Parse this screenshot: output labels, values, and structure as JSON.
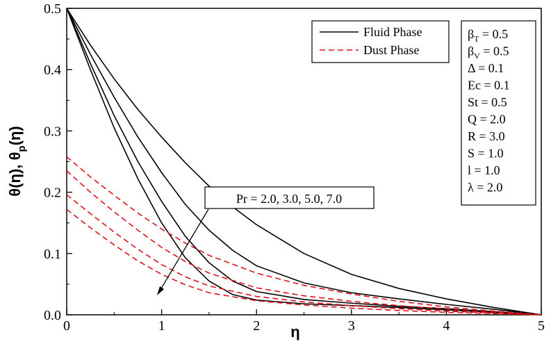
{
  "chart_data": {
    "type": "line",
    "xlabel": "η",
    "ylabel": "θ(η), θ_p(η)",
    "ylabel_main": "θ(η), θ",
    "ylabel_sub": "p",
    "ylabel_tail": "(η)",
    "xlim": [
      0,
      5
    ],
    "ylim": [
      0,
      0.5
    ],
    "x_ticks": [
      "0",
      "1",
      "2",
      "3",
      "4",
      "5"
    ],
    "y_ticks": [
      "0.0",
      "0.1",
      "0.2",
      "0.3",
      "0.4",
      "0.5"
    ],
    "grid": false,
    "legend": [
      {
        "label": "Fluid Phase",
        "style": "solid",
        "color": "#000000"
      },
      {
        "label": "Dust Phase",
        "style": "dashed",
        "color": "#e0101a"
      }
    ],
    "parameters": [
      {
        "base": "β",
        "sub": "T",
        "rest": " = 0.5"
      },
      {
        "base": "β",
        "sub": "V",
        "rest": " = 0.5"
      },
      {
        "base": "Δ = 0.1",
        "sub": "",
        "rest": ""
      },
      {
        "base": "Ec = 0.1",
        "sub": "",
        "rest": ""
      },
      {
        "base": "St = 0.5",
        "sub": "",
        "rest": ""
      },
      {
        "base": "Q = 2.0",
        "sub": "",
        "rest": ""
      },
      {
        "base": "R = 3.0",
        "sub": "",
        "rest": ""
      },
      {
        "base": "S = 1.0",
        "sub": "",
        "rest": ""
      },
      {
        "base": "l = 1.0",
        "sub": "",
        "rest": ""
      },
      {
        "base": "λ = 2.0",
        "sub": "",
        "rest": ""
      }
    ],
    "annotation": "Pr = 2.0, 3.0, 5.0, 7.0",
    "series": [
      {
        "phase": "fluid",
        "color": "#000000",
        "dash": "solid",
        "x": [
          0,
          0.25,
          0.5,
          0.75,
          1.0,
          1.25,
          1.5,
          1.75,
          2.0,
          2.5,
          3.0,
          3.5,
          4.0,
          4.5,
          5.0
        ],
        "y": [
          0.5,
          0.44,
          0.385,
          0.335,
          0.29,
          0.248,
          0.21,
          0.176,
          0.147,
          0.1,
          0.066,
          0.043,
          0.026,
          0.012,
          0.0
        ]
      },
      {
        "phase": "fluid",
        "color": "#000000",
        "dash": "solid",
        "x": [
          0,
          0.25,
          0.5,
          0.75,
          1.0,
          1.25,
          1.5,
          1.75,
          2.0,
          2.5,
          3.0,
          3.5,
          4.0,
          4.5,
          5.0
        ],
        "y": [
          0.5,
          0.425,
          0.355,
          0.29,
          0.232,
          0.18,
          0.138,
          0.105,
          0.08,
          0.052,
          0.036,
          0.026,
          0.017,
          0.009,
          0.0
        ]
      },
      {
        "phase": "fluid",
        "color": "#000000",
        "dash": "solid",
        "x": [
          0,
          0.25,
          0.5,
          0.75,
          1.0,
          1.25,
          1.5,
          1.75,
          2.0,
          2.5,
          3.0,
          3.5,
          4.0,
          4.5,
          5.0
        ],
        "y": [
          0.5,
          0.41,
          0.325,
          0.25,
          0.185,
          0.128,
          0.085,
          0.055,
          0.038,
          0.025,
          0.019,
          0.014,
          0.01,
          0.005,
          0.0
        ]
      },
      {
        "phase": "fluid",
        "color": "#000000",
        "dash": "solid",
        "x": [
          0,
          0.25,
          0.5,
          0.75,
          1.0,
          1.25,
          1.5,
          1.75,
          2.0,
          2.5,
          3.0,
          3.5,
          4.0,
          4.5,
          5.0
        ],
        "y": [
          0.5,
          0.4,
          0.305,
          0.222,
          0.15,
          0.093,
          0.055,
          0.033,
          0.024,
          0.018,
          0.015,
          0.012,
          0.008,
          0.004,
          0.0
        ]
      },
      {
        "phase": "dust",
        "color": "#e0101a",
        "dash": "dashed",
        "x": [
          0,
          0.25,
          0.5,
          0.75,
          1.0,
          1.25,
          1.5,
          2.0,
          2.5,
          3.0,
          3.5,
          4.0,
          4.5,
          5.0
        ],
        "y": [
          0.258,
          0.225,
          0.195,
          0.166,
          0.14,
          0.117,
          0.097,
          0.068,
          0.048,
          0.034,
          0.022,
          0.013,
          0.006,
          0.0
        ]
      },
      {
        "phase": "dust",
        "color": "#e0101a",
        "dash": "dashed",
        "x": [
          0,
          0.25,
          0.5,
          0.75,
          1.0,
          1.25,
          1.5,
          2.0,
          2.5,
          3.0,
          3.5,
          4.0,
          4.5,
          5.0
        ],
        "y": [
          0.235,
          0.2,
          0.168,
          0.138,
          0.11,
          0.087,
          0.068,
          0.044,
          0.031,
          0.022,
          0.015,
          0.009,
          0.004,
          0.0
        ]
      },
      {
        "phase": "dust",
        "color": "#e0101a",
        "dash": "dashed",
        "x": [
          0,
          0.25,
          0.5,
          0.75,
          1.0,
          1.25,
          1.5,
          2.0,
          2.5,
          3.0,
          3.5,
          4.0,
          4.5,
          5.0
        ],
        "y": [
          0.196,
          0.165,
          0.135,
          0.107,
          0.082,
          0.062,
          0.047,
          0.03,
          0.021,
          0.015,
          0.01,
          0.006,
          0.003,
          0.0
        ]
      },
      {
        "phase": "dust",
        "color": "#e0101a",
        "dash": "dashed",
        "x": [
          0,
          0.25,
          0.5,
          0.75,
          1.0,
          1.25,
          1.5,
          2.0,
          2.5,
          3.0,
          3.5,
          4.0,
          4.5,
          5.0
        ],
        "y": [
          0.172,
          0.142,
          0.114,
          0.088,
          0.066,
          0.049,
          0.036,
          0.023,
          0.016,
          0.011,
          0.007,
          0.004,
          0.002,
          0.0
        ]
      }
    ]
  }
}
